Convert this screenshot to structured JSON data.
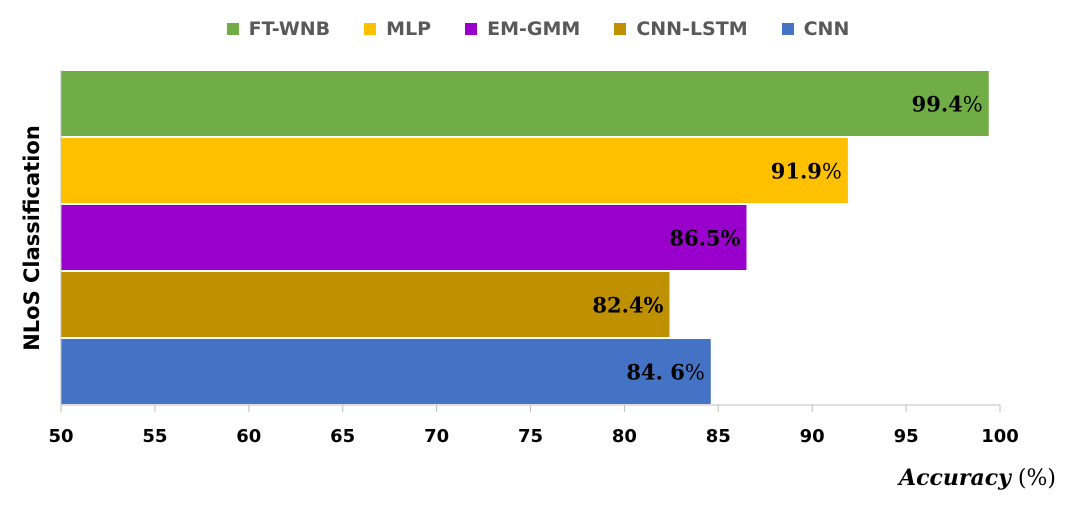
{
  "chart_data": {
    "type": "bar",
    "orientation": "horizontal",
    "title": "",
    "xlabel": "Accuracy",
    "xlabel_unit": "(%)",
    "ylabel": "NLoS Classification",
    "xlim": [
      50,
      100
    ],
    "xticks": [
      "50",
      "55",
      "60",
      "65",
      "70",
      "75",
      "80",
      "85",
      "90",
      "95",
      "100"
    ],
    "grid": false,
    "legend_position": "top-center",
    "series": [
      {
        "name": "FT-WNB",
        "value": 99.4,
        "label_num": "99.4",
        "label_unit": "%",
        "color": "#70AD47"
      },
      {
        "name": "MLP",
        "value": 91.9,
        "label_num": "91.9",
        "label_unit": "%",
        "color": "#FFC000"
      },
      {
        "name": "EM-GMM",
        "value": 86.5,
        "label_num": "86.5%",
        "label_unit": "",
        "color": "#9900CC"
      },
      {
        "name": "CNN-LSTM",
        "value": 82.4,
        "label_num": "82.4%",
        "label_unit": "",
        "color": "#BF9000"
      },
      {
        "name": "CNN",
        "value": 84.6,
        "label_num": "84. 6",
        "label_unit": "%",
        "color": "#4472C4"
      }
    ]
  }
}
